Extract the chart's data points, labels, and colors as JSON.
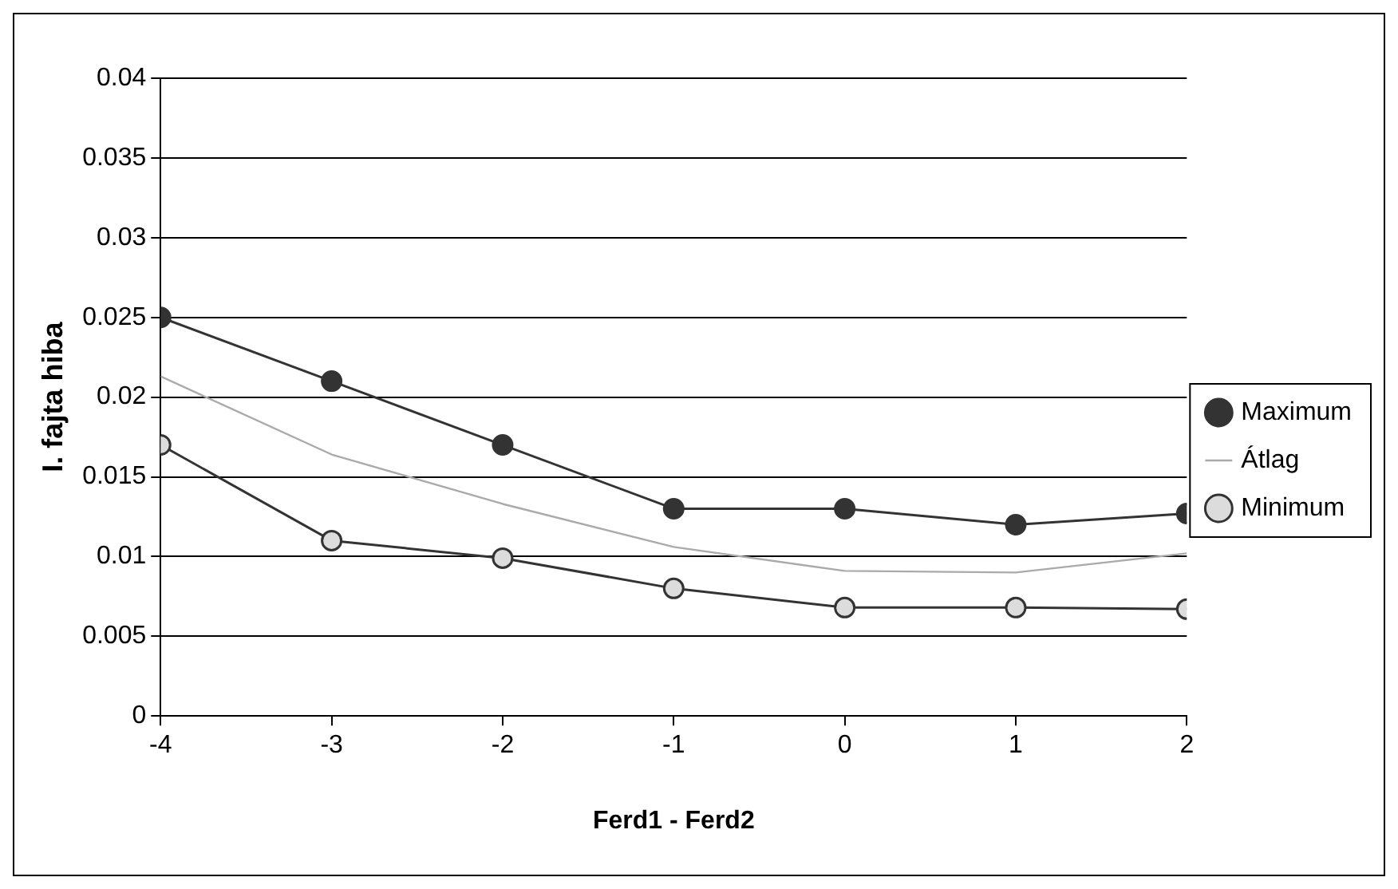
{
  "chart_data": {
    "type": "line",
    "xlabel": "Ferd1 - Ferd2",
    "ylabel": "I. fajta hiba",
    "x": [
      -4,
      -3,
      -2,
      -1,
      0,
      1,
      2
    ],
    "series": [
      {
        "name": "Maximum",
        "color": "#333333",
        "marker": "circle",
        "values": [
          0.025,
          0.021,
          0.017,
          0.013,
          0.013,
          0.012,
          0.0127
        ]
      },
      {
        "name": "Átlag",
        "color": "#aaaaaa",
        "marker": "none",
        "values": [
          0.0213,
          0.0164,
          0.0133,
          0.0106,
          0.0091,
          0.009,
          0.0102
        ]
      },
      {
        "name": "Minimum",
        "color": "#333333",
        "marker": "circle",
        "values": [
          0.017,
          0.011,
          0.0099,
          0.008,
          0.0068,
          0.0068,
          0.0067
        ]
      }
    ],
    "xlim": [
      -4,
      2
    ],
    "xticks": [
      -4,
      -3,
      -2,
      -1,
      0,
      1,
      2
    ],
    "ylim": [
      0,
      0.04
    ],
    "yticks": [
      0,
      0.005,
      0.01,
      0.015,
      0.02,
      0.025,
      0.03,
      0.035,
      0.04
    ],
    "grid": "y",
    "legend": "right",
    "line_style": "solid"
  }
}
